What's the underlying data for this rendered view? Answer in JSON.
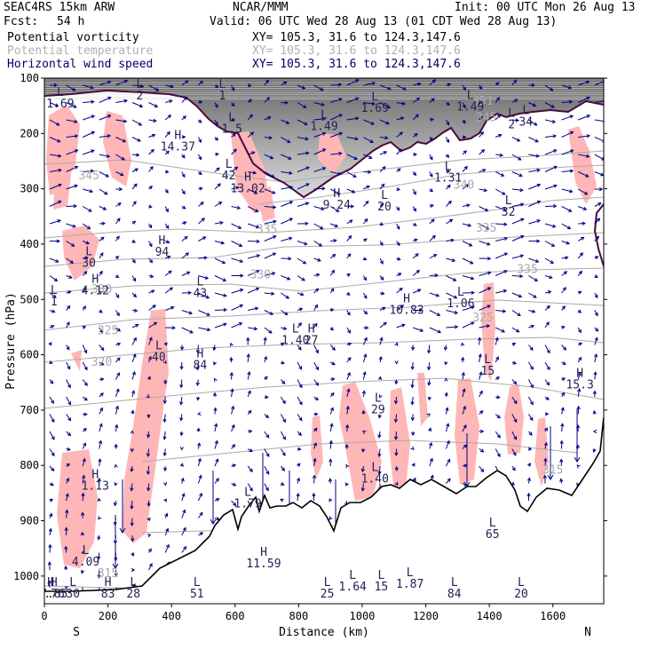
{
  "header": {
    "model": "SEAC4RS 15km ARW",
    "center": "NCAR/MMM",
    "init": "Init: 00 UTC Mon 26 Aug 13",
    "fcst_label": "Fcst:",
    "fcst_value": "54 h",
    "valid": "Valid: 06 UTC Wed 28 Aug 13 (01 CDT Wed 28 Aug 13)",
    "fields": [
      {
        "name": "Potential vorticity",
        "xy": "XY= 105.3, 31.6 to 124.3,147.6"
      },
      {
        "name": "Potential temperature",
        "xy": "XY= 105.3, 31.6 to 124.3,147.6"
      },
      {
        "name": "Horizontal wind speed",
        "xy": "XY= 105.3, 31.6 to 124.3,147.6"
      }
    ]
  },
  "colors": {
    "pv_fill": "#ffb6b6",
    "theta_line": "#aaaaaa",
    "wind_vector": "#000088",
    "tropopause": "#4a0a3a",
    "terrain": "#000000"
  },
  "chart_data": {
    "type": "cross-section",
    "xlabel": "Distance (km)",
    "ylabel": "Pressure (hPa)",
    "xlim": [
      0,
      1760
    ],
    "ylim": [
      1050,
      100
    ],
    "x_ticks": [
      0,
      200,
      400,
      600,
      800,
      1000,
      1200,
      1400,
      1600
    ],
    "y_ticks": [
      100,
      200,
      300,
      400,
      500,
      600,
      700,
      800,
      900,
      1000
    ],
    "endpoints": {
      "left": "S",
      "right": "N"
    },
    "theta_labels": [
      {
        "text": "345",
        "x": 1390,
        "p": 178
      },
      {
        "text": "351",
        "x": 1380,
        "p": 148
      },
      {
        "text": "345",
        "x": 140,
        "p": 283
      },
      {
        "text": "340",
        "x": 1320,
        "p": 300
      },
      {
        "text": "335",
        "x": 700,
        "p": 380
      },
      {
        "text": "335",
        "x": 1390,
        "p": 378
      },
      {
        "text": "335",
        "x": 1520,
        "p": 452
      },
      {
        "text": "330",
        "x": 680,
        "p": 462
      },
      {
        "text": "330",
        "x": 180,
        "p": 488
      },
      {
        "text": "325",
        "x": 1380,
        "p": 540
      },
      {
        "text": "325",
        "x": 200,
        "p": 563
      },
      {
        "text": "320",
        "x": 180,
        "p": 620
      },
      {
        "text": "315",
        "x": 1600,
        "p": 815
      },
      {
        "text": "315",
        "x": 200,
        "p": 1002
      }
    ],
    "extrema": [
      {
        "type": "L",
        "value": "1.69",
        "x": 50,
        "p": 132
      },
      {
        "type": "L",
        "value": "2",
        "x": 300,
        "p": 118
      },
      {
        "type": "L",
        "value": "1",
        "x": 560,
        "p": 118
      },
      {
        "type": "L",
        "value": "1.5",
        "x": 590,
        "p": 178
      },
      {
        "type": "L",
        "value": "1.69",
        "x": 1040,
        "p": 140
      },
      {
        "type": "L",
        "value": "1.49",
        "x": 880,
        "p": 173
      },
      {
        "type": "L",
        "value": "1.49",
        "x": 1340,
        "p": 138
      },
      {
        "type": "L",
        "value": "2",
        "x": 1470,
        "p": 170
      },
      {
        "type": "L",
        "value": "34",
        "x": 1515,
        "p": 165
      },
      {
        "type": "H",
        "value": "14.37",
        "x": 420,
        "p": 210
      },
      {
        "type": "L",
        "value": "42",
        "x": 580,
        "p": 262
      },
      {
        "type": "H",
        "value": "13.02",
        "x": 640,
        "p": 285
      },
      {
        "type": "L",
        "value": "1.31",
        "x": 1270,
        "p": 266
      },
      {
        "type": "H",
        "value": "9.24",
        "x": 920,
        "p": 315
      },
      {
        "type": "L",
        "value": "20",
        "x": 1070,
        "p": 318
      },
      {
        "type": "L",
        "value": "32",
        "x": 1460,
        "p": 328
      },
      {
        "type": "H",
        "value": "94",
        "x": 370,
        "p": 400
      },
      {
        "type": "L",
        "value": "30",
        "x": 140,
        "p": 420
      },
      {
        "type": "L",
        "value": "43",
        "x": 490,
        "p": 475
      },
      {
        "type": "H",
        "value": "4.12",
        "x": 160,
        "p": 470
      },
      {
        "type": "L",
        "value": "1",
        "x": 30,
        "p": 490
      },
      {
        "type": "H",
        "value": "10.83",
        "x": 1140,
        "p": 505
      },
      {
        "type": "L",
        "value": "1.06",
        "x": 1310,
        "p": 493
      },
      {
        "type": "L",
        "value": "1.40",
        "x": 790,
        "p": 560
      },
      {
        "type": "H",
        "value": "27",
        "x": 840,
        "p": 560
      },
      {
        "type": "H",
        "value": "84",
        "x": 490,
        "p": 605
      },
      {
        "type": "L",
        "value": "40",
        "x": 360,
        "p": 590
      },
      {
        "type": "L",
        "value": "15",
        "x": 1395,
        "p": 615
      },
      {
        "type": "H",
        "value": "15.3",
        "x": 1685,
        "p": 640
      },
      {
        "type": "L",
        "value": "29",
        "x": 1050,
        "p": 685
      },
      {
        "type": "L",
        "value": "1.40",
        "x": 1040,
        "p": 810
      },
      {
        "type": "H",
        "value": "1.13",
        "x": 160,
        "p": 823
      },
      {
        "type": "L",
        "value": "1.79",
        "x": 640,
        "p": 855
      },
      {
        "type": "L",
        "value": "65",
        "x": 1410,
        "p": 910
      },
      {
        "type": "L",
        "value": "4.09",
        "x": 130,
        "p": 960
      },
      {
        "type": "H",
        "value": "11.59",
        "x": 690,
        "p": 963
      },
      {
        "type": "L",
        "value": "1.64",
        "x": 970,
        "p": 1005
      },
      {
        "type": "L",
        "value": "15",
        "x": 1060,
        "p": 1005
      },
      {
        "type": "L",
        "value": "1.87",
        "x": 1150,
        "p": 1000
      },
      {
        "type": "L",
        "value": "20",
        "x": 1500,
        "p": 1025
      },
      {
        "type": "H",
        "value": "9.76",
        "x": 20,
        "p": 1050
      },
      {
        "type": "L",
        "value": "30",
        "x": 90,
        "p": 1050
      },
      {
        "type": "L",
        "value": "28",
        "x": 280,
        "p": 1045
      },
      {
        "type": "L",
        "value": "51",
        "x": 480,
        "p": 1040
      },
      {
        "type": "L",
        "value": "25",
        "x": 890,
        "p": 1060
      },
      {
        "type": "L",
        "value": "84",
        "x": 1290,
        "p": 1042
      },
      {
        "type": "H",
        "value": "83",
        "x": 200,
        "p": 1110
      },
      {
        "type": "H",
        "value": "7.85",
        "x": 30,
        "p": 1152
      }
    ]
  }
}
